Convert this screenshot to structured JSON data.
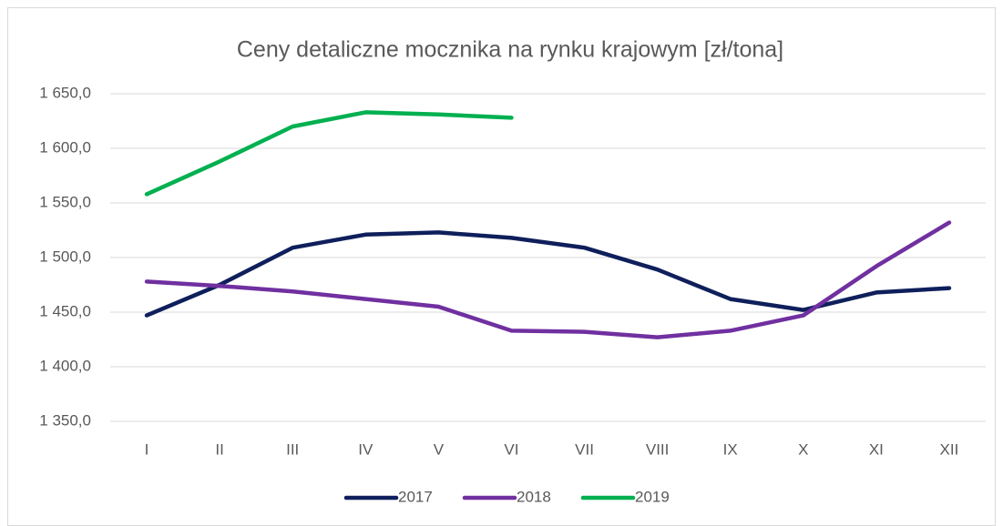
{
  "chart_data": {
    "type": "line",
    "title": "Ceny detaliczne mocznika na rynku krajowym [zł/tona]",
    "categories": [
      "I",
      "II",
      "III",
      "IV",
      "V",
      "VI",
      "VII",
      "VIII",
      "IX",
      "X",
      "XI",
      "XII"
    ],
    "series": [
      {
        "name": "2017",
        "color": "#0e1f5b",
        "values": [
          1447,
          1475,
          1509,
          1521,
          1523,
          1518,
          1509,
          1489,
          1462,
          1452,
          1468,
          1472
        ]
      },
      {
        "name": "2018",
        "color": "#7030a0",
        "values": [
          1478,
          1474,
          1469,
          1462,
          1455,
          1433,
          1432,
          1427,
          1433,
          1447,
          1492,
          1532
        ]
      },
      {
        "name": "2019",
        "color": "#00b050",
        "values": [
          1558,
          1588,
          1620,
          1633,
          1631,
          1628,
          null,
          null,
          null,
          null,
          null,
          null
        ]
      }
    ],
    "ylim": [
      1350,
      1650
    ],
    "yticks": [
      {
        "value": 1350,
        "label": "1 350,0"
      },
      {
        "value": 1400,
        "label": "1 400,0"
      },
      {
        "value": 1450,
        "label": "1 450,0"
      },
      {
        "value": 1500,
        "label": "1 500,0"
      },
      {
        "value": 1550,
        "label": "1 550,0"
      },
      {
        "value": 1600,
        "label": "1 600,0"
      },
      {
        "value": 1650,
        "label": "1 650,0"
      }
    ],
    "grid": true,
    "legend": "bottom"
  }
}
